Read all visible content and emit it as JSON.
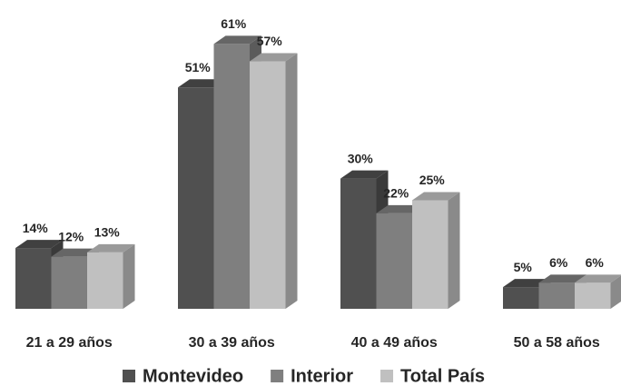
{
  "chart_data": {
    "type": "bar3d",
    "categories": [
      "21 a 29 años",
      "30 a 39 años",
      "40 a 49 años",
      "50 a 58 años"
    ],
    "series": [
      {
        "name": "Montevideo",
        "color": "#505050",
        "values": [
          14,
          51,
          30,
          5
        ],
        "value_labels": [
          "14%",
          "51%",
          "30%",
          "5%"
        ]
      },
      {
        "name": "Interior",
        "color": "#7f7f7f",
        "values": [
          12,
          61,
          22,
          6
        ],
        "value_labels": [
          "12%",
          "61%",
          "22%",
          "6%"
        ]
      },
      {
        "name": "Total País",
        "color": "#c0c0c0",
        "values": [
          13,
          57,
          25,
          6
        ],
        "value_labels": [
          "13%",
          "57%",
          "25%",
          "6%"
        ]
      }
    ],
    "legend": "bottom"
  }
}
